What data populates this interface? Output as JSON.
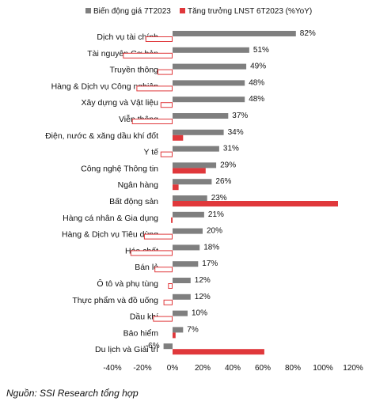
{
  "source": "Nguồn: SSI Research tổng hợp",
  "colors": {
    "price": "#7f7f7f",
    "profit": "#e0383b",
    "profit_neg_fill": "#ffffff"
  },
  "chart_data": {
    "type": "bar",
    "orientation": "horizontal",
    "legend_position": "top",
    "categories": [
      "Dịch vụ tài chính",
      "Tài nguyên Cơ bản",
      "Truyền thông",
      "Hàng & Dịch vụ Công nghiệp",
      "Xây dựng và Vật liệu",
      "Viễn thông",
      "Điện, nước & xăng dầu khí đốt",
      "Y tế",
      "Công nghệ Thông tin",
      "Ngân hàng",
      "Bất động sản",
      "Hàng cá nhân & Gia dụng",
      "Hàng & Dịch vụ Tiêu dùng",
      "Hóa chất",
      "Bán lẻ",
      "Ô tô và phụ tùng",
      "Thực phẩm và đồ uống",
      "Dầu khí",
      "Bảo hiểm",
      "Du lịch và Giải trí"
    ],
    "series": [
      {
        "name": "Biến động giá 7T2023",
        "values": [
          82,
          51,
          49,
          48,
          48,
          37,
          34,
          31,
          29,
          26,
          23,
          21,
          20,
          18,
          17,
          12,
          12,
          10,
          7,
          -6
        ],
        "labels": [
          "82%",
          "51%",
          "49%",
          "48%",
          "48%",
          "37%",
          "34%",
          "31%",
          "29%",
          "26%",
          "23%",
          "21%",
          "20%",
          "18%",
          "17%",
          "12%",
          "12%",
          "10%",
          "7%",
          "-6%"
        ]
      },
      {
        "name": "Tăng trưởng LNST 6T2023 (%YoY)",
        "values": [
          -18,
          -33,
          -10,
          -24,
          -8,
          -27,
          7,
          -8,
          22,
          4,
          110,
          -1,
          -19,
          -28,
          -12,
          -3,
          -6,
          -13,
          2,
          61
        ]
      }
    ],
    "xlim": [
      -40,
      120
    ],
    "xticks": [
      -40,
      -20,
      0,
      20,
      40,
      60,
      80,
      100,
      120
    ],
    "xtick_labels": [
      "-40%",
      "-20%",
      "0%",
      "20%",
      "40%",
      "60%",
      "80%",
      "100%",
      "120%"
    ],
    "grid": false
  }
}
